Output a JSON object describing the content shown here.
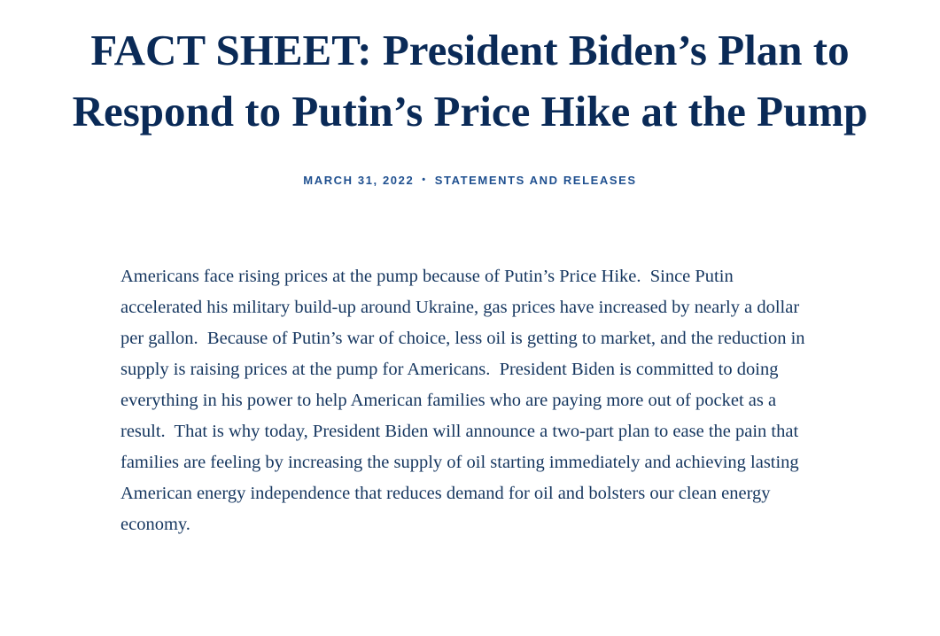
{
  "page": {
    "title": "FACT SHEET: President Biden’s Plan to Respond to Putin’s Price Hike at the Pump",
    "meta": {
      "date": "MARCH 31, 2022",
      "separator": "•",
      "category": "STATEMENTS AND RELEASES"
    },
    "body": {
      "paragraph": "Americans face rising prices at the pump because of Putin’s Price Hike.  Since Putin accelerated his military build-up around Ukraine, gas prices have increased by nearly a dollar per gallon.  Because of Putin’s war of choice, less oil is getting to market, and the reduction in supply is raising prices at the pump for Americans.  President Biden is committed to doing everything in his power to help American families who are paying more out of pocket as a result.  That is why today, President Biden will announce a two-part plan to ease the pain that families are feeling by increasing the supply of oil starting immediately and achieving lasting American energy independence that reduces demand for oil and bolsters our clean energy economy."
    },
    "colors": {
      "heading": "#0a2a57",
      "meta_blue": "#1e4f8f",
      "body_text": "#15365f",
      "background": "#ffffff"
    }
  }
}
